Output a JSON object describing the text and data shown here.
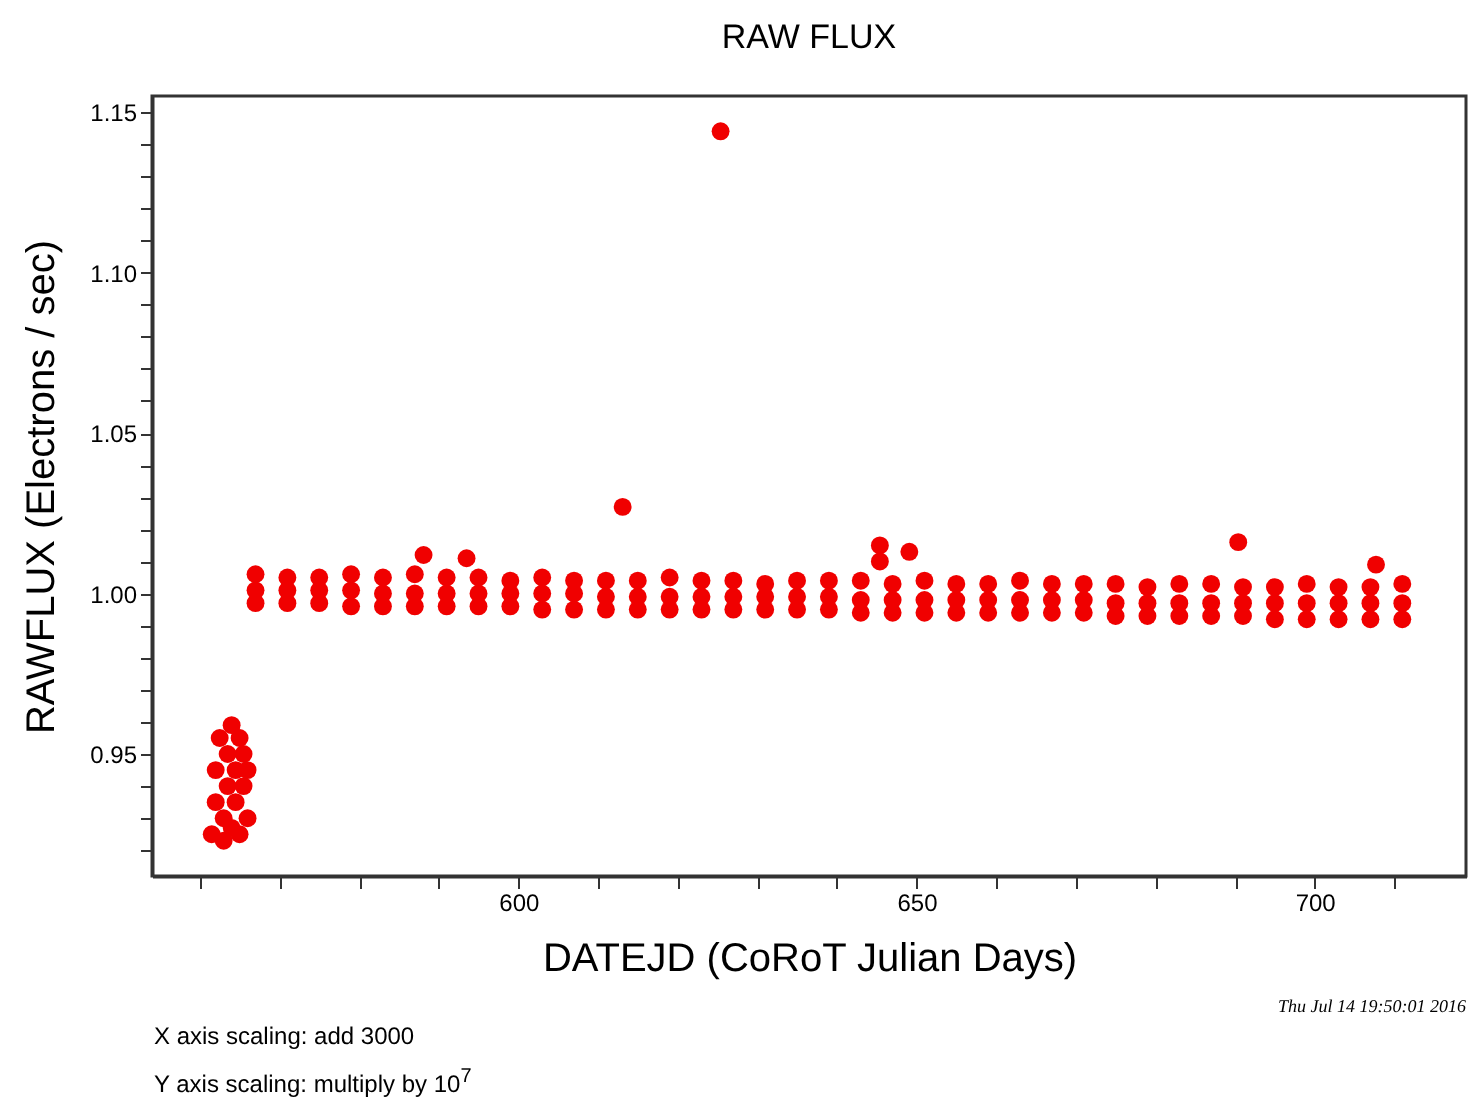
{
  "chart_data": {
    "type": "scatter",
    "title": "RAW FLUX",
    "xlabel": "DATEJD (CoRoT Julian Days)",
    "ylabel": "RAWFLUX (Electrons / sec)",
    "annotations": [
      "X axis scaling: add 3000",
      "Y axis scaling: multiply by 10$^{7}$",
      "Thu Jul 14 19:50:01 2016"
    ],
    "xlim": [
      554,
      719
    ],
    "ylim": [
      0.912,
      1.155
    ],
    "xticks": [
      {
        "value": 560,
        "label": null
      },
      {
        "value": 570,
        "label": null
      },
      {
        "value": 580,
        "label": null
      },
      {
        "value": 590,
        "label": null
      },
      600,
      {
        "value": 610,
        "label": null
      },
      {
        "value": 620,
        "label": null
      },
      {
        "value": 630,
        "label": null
      },
      {
        "value": 640,
        "label": null
      },
      650,
      {
        "value": 660,
        "label": null
      },
      {
        "value": 670,
        "label": null
      },
      {
        "value": 680,
        "label": null
      },
      {
        "value": 690,
        "label": null
      },
      700,
      {
        "value": 710,
        "label": null
      }
    ],
    "yticks": [
      {
        "value": 0.92,
        "label": null
      },
      {
        "value": 0.93,
        "label": null
      },
      {
        "value": 0.94,
        "label": null
      },
      0.95,
      {
        "value": 0.96,
        "label": null
      },
      {
        "value": 0.97,
        "label": null
      },
      {
        "value": 0.98,
        "label": null
      },
      {
        "value": 0.99,
        "label": null
      },
      {
        "value": 1,
        "label": "1.00"
      },
      {
        "value": 1.01,
        "label": null
      },
      {
        "value": 1.02,
        "label": null
      },
      {
        "value": 1.03,
        "label": null
      },
      {
        "value": 1.04,
        "label": null
      },
      1.05,
      {
        "value": 1.06,
        "label": null
      },
      {
        "value": 1.07,
        "label": null
      },
      {
        "value": 1.08,
        "label": null
      },
      {
        "value": 1.09,
        "label": null
      },
      {
        "value": 1.1,
        "label": "1.10"
      },
      {
        "value": 1.11,
        "label": null
      },
      {
        "value": 1.12,
        "label": null
      },
      {
        "value": 1.13,
        "label": null
      },
      {
        "value": 1.14,
        "label": null
      },
      1.15
    ],
    "marker": "circle",
    "series": [
      {
        "color": "#f00000",
        "x": [
          561.5,
          562,
          562,
          562.5,
          563,
          563,
          563.5,
          563.5,
          564,
          564,
          564.5,
          564.5,
          565,
          565,
          565.5,
          565.5,
          566,
          566,
          567,
          571,
          575,
          579,
          583,
          587,
          591,
          595,
          599,
          603,
          607,
          611,
          615,
          619,
          623,
          627,
          631,
          635,
          639,
          643,
          647,
          651,
          655,
          659,
          663,
          667,
          671,
          675,
          679,
          683,
          687,
          691,
          695,
          699,
          703,
          707,
          711,
          567,
          571,
          575,
          579,
          583,
          587,
          591,
          595,
          599,
          603,
          607,
          611,
          615,
          619,
          623,
          627,
          631,
          635,
          639,
          643,
          647,
          651,
          655,
          659,
          663,
          667,
          671,
          675,
          679,
          683,
          687,
          691,
          695,
          699,
          703,
          707,
          711,
          567,
          571,
          575,
          579,
          583,
          587,
          591,
          595,
          599,
          603,
          607,
          611,
          615,
          619,
          623,
          627,
          631,
          635,
          639,
          643,
          647,
          651,
          655,
          659,
          663,
          667,
          671,
          675,
          679,
          683,
          687,
          691,
          695,
          699,
          703,
          707,
          711,
          625.4,
          613.1,
          588.1,
          593.5,
          645.4,
          645.4,
          649.1,
          690.4,
          707.7
        ],
        "values": [
          0.925,
          0.935,
          0.945,
          0.955,
          0.923,
          0.93,
          0.94,
          0.95,
          0.959,
          0.927,
          0.935,
          0.945,
          0.955,
          0.925,
          0.94,
          0.95,
          0.93,
          0.945,
          1.006,
          1.005,
          1.005,
          1.006,
          1.005,
          1.006,
          1.005,
          1.005,
          1.004,
          1.005,
          1.004,
          1.004,
          1.004,
          1.005,
          1.004,
          1.004,
          1.003,
          1.004,
          1.004,
          1.004,
          1.003,
          1.004,
          1.003,
          1.003,
          1.004,
          1.003,
          1.003,
          1.003,
          1.002,
          1.003,
          1.003,
          1.002,
          1.002,
          1.003,
          1.002,
          1.002,
          1.003,
          1.001,
          1.001,
          1.001,
          1.001,
          1.0,
          1.0,
          1.0,
          1.0,
          1.0,
          1.0,
          1.0,
          0.999,
          0.999,
          0.999,
          0.999,
          0.999,
          0.999,
          0.999,
          0.999,
          0.998,
          0.998,
          0.998,
          0.998,
          0.998,
          0.998,
          0.998,
          0.998,
          0.997,
          0.997,
          0.997,
          0.997,
          0.997,
          0.997,
          0.997,
          0.997,
          0.997,
          0.997,
          0.997,
          0.997,
          0.997,
          0.996,
          0.996,
          0.996,
          0.996,
          0.996,
          0.996,
          0.995,
          0.995,
          0.995,
          0.995,
          0.995,
          0.995,
          0.995,
          0.995,
          0.995,
          0.995,
          0.994,
          0.994,
          0.994,
          0.994,
          0.994,
          0.994,
          0.994,
          0.994,
          0.993,
          0.993,
          0.993,
          0.993,
          0.993,
          0.992,
          0.992,
          0.992,
          0.992,
          0.992,
          1.144,
          1.027,
          1.012,
          1.011,
          1.015,
          1.01,
          1.013,
          1.016,
          1.009
        ]
      }
    ]
  }
}
